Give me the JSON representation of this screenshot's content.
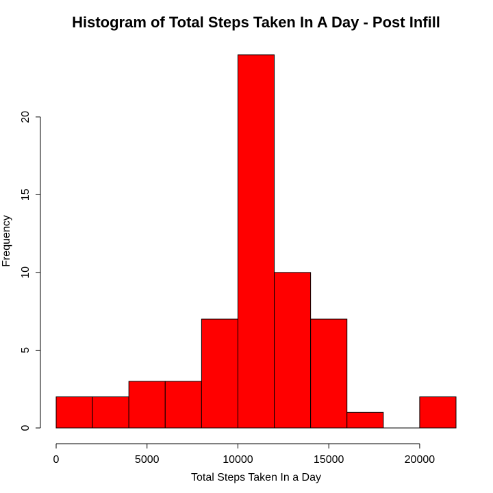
{
  "chart_data": {
    "type": "bar",
    "title": "Histogram of Total Steps Taken In A Day - Post Infill",
    "xlabel": "Total Steps Taken In a Day",
    "ylabel": "Frequency",
    "bins": [
      {
        "start": 0,
        "end": 2000,
        "count": 2
      },
      {
        "start": 2000,
        "end": 4000,
        "count": 2
      },
      {
        "start": 4000,
        "end": 6000,
        "count": 3
      },
      {
        "start": 6000,
        "end": 8000,
        "count": 3
      },
      {
        "start": 8000,
        "end": 10000,
        "count": 7
      },
      {
        "start": 10000,
        "end": 12000,
        "count": 24
      },
      {
        "start": 12000,
        "end": 14000,
        "count": 10
      },
      {
        "start": 14000,
        "end": 16000,
        "count": 7
      },
      {
        "start": 16000,
        "end": 18000,
        "count": 1
      },
      {
        "start": 18000,
        "end": 20000,
        "count": 0
      },
      {
        "start": 20000,
        "end": 22000,
        "count": 2
      }
    ],
    "xlim": [
      0,
      22000
    ],
    "ylim": [
      0,
      24
    ],
    "xticks": [
      0,
      5000,
      10000,
      15000,
      20000
    ],
    "yticks": [
      0,
      5,
      10,
      15,
      20
    ],
    "bar_color": "#FF0000",
    "grid": false
  }
}
